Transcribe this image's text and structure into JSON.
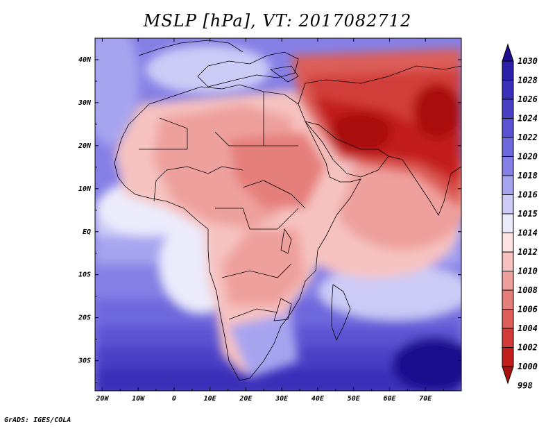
{
  "title": "MSLP [hPa], VT: 2017082712",
  "footer": "GrADS: IGES/COLA",
  "axes": {
    "lat_labels": [
      "40N",
      "30N",
      "20N",
      "10N",
      "EQ",
      "10S",
      "20S",
      "30S"
    ],
    "lat_values": [
      40,
      30,
      20,
      10,
      0,
      -10,
      -20,
      -30
    ],
    "lon_labels": [
      "20W",
      "10W",
      "0",
      "10E",
      "20E",
      "30E",
      "40E",
      "50E",
      "60E",
      "70E"
    ],
    "lon_values": [
      -20,
      -10,
      0,
      10,
      20,
      30,
      40,
      50,
      60,
      70
    ],
    "lat_range": [
      -37,
      45
    ],
    "lon_range": [
      -22,
      80
    ]
  },
  "colorbar": {
    "labels": [
      "1030",
      "1028",
      "1026",
      "1024",
      "1022",
      "1020",
      "1018",
      "1016",
      "1015",
      "1014",
      "1012",
      "1010",
      "1008",
      "1006",
      "1004",
      "1002",
      "1000",
      "998"
    ],
    "colors": [
      "#1e0d8f",
      "#2d20a8",
      "#3a2fb8",
      "#4a40c6",
      "#5b53d3",
      "#6e68dd",
      "#8680e6",
      "#a7a4ef",
      "#cccbf6",
      "#ecebfc",
      "#fde3e3",
      "#f6c2c0",
      "#eea09d",
      "#e57f7b",
      "#dc5d59",
      "#d13c38",
      "#c21e1c",
      "#aa1010"
    ]
  },
  "colors": {
    "background": "#ffffff",
    "ocean_south": "#3a2fb8",
    "ocean_mid": "#8680e6",
    "land_high": "#eea09d",
    "land_low": "#aa1010",
    "coast": "#000000"
  }
}
